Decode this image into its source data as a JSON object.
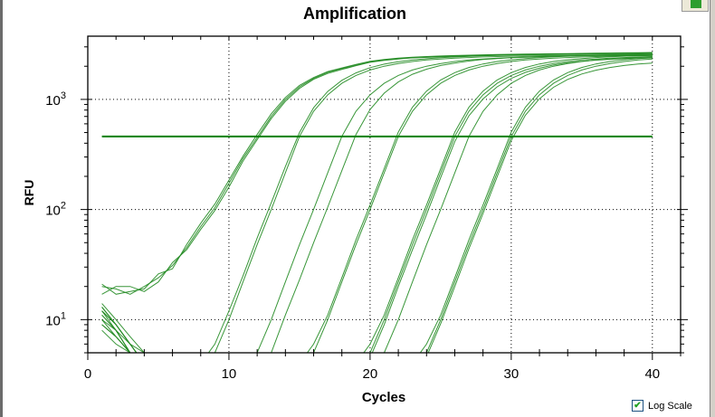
{
  "chart_data": {
    "type": "line",
    "title": "Amplification",
    "xlabel": "Cycles",
    "ylabel": "RFU",
    "xlim": [
      0,
      42
    ],
    "ylim": [
      5,
      3750
    ],
    "yscale": "log",
    "x_ticks": [
      0,
      10,
      20,
      30,
      40
    ],
    "y_ticks": [
      {
        "value": 10,
        "base": "10",
        "exp": "1"
      },
      {
        "value": 100,
        "base": "10",
        "exp": "2"
      },
      {
        "value": 1000,
        "base": "10",
        "exp": "3"
      }
    ],
    "grid": true,
    "threshold": 461,
    "threshold_range": [
      1,
      40
    ],
    "line_color": "#228B22",
    "threshold_color": "#008000",
    "x": [
      1,
      2,
      3,
      4,
      5,
      6,
      7,
      8,
      9,
      10,
      11,
      12,
      13,
      14,
      15,
      16,
      17,
      18,
      19,
      20,
      21,
      22,
      23,
      24,
      25,
      26,
      27,
      28,
      29,
      30,
      31,
      32,
      33,
      34,
      35,
      36,
      37,
      38,
      39,
      40
    ],
    "series": [
      {
        "values": [
          20,
          19,
          17,
          20,
          24,
          31,
          45,
          70,
          104,
          173,
          290,
          450,
          700,
          1000,
          1300,
          1550,
          1760,
          1900,
          2050,
          2200,
          2280,
          2350,
          2400,
          2430,
          2460,
          2480,
          2500,
          2520,
          2540,
          2550,
          2560,
          2570,
          2580,
          2590,
          2600,
          2610,
          2620,
          2630,
          2640,
          2650
        ]
      },
      {
        "values": [
          21,
          17,
          18,
          19,
          26,
          29,
          48,
          75,
          112,
          185,
          305,
          480,
          740,
          1040,
          1340,
          1580,
          1790,
          1930,
          2080,
          2220,
          2300,
          2370,
          2420,
          2450,
          2480,
          2500,
          2520,
          2540,
          2560,
          2570,
          2580,
          2590,
          2600,
          2610,
          2620,
          2630,
          2640,
          2650,
          2660,
          2670
        ]
      },
      {
        "values": [
          17,
          20,
          20,
          18,
          22,
          33,
          43,
          66,
          98,
          160,
          275,
          430,
          670,
          960,
          1260,
          1520,
          1720,
          1870,
          2020,
          2170,
          2260,
          2330,
          2380,
          2410,
          2440,
          2460,
          2480,
          2500,
          2520,
          2530,
          2540,
          2550,
          2560,
          2570,
          2580,
          2590,
          2600,
          2610,
          2620,
          2630
        ]
      },
      {
        "values": [
          12,
          9,
          6,
          4,
          4,
          4,
          4,
          4,
          5,
          10,
          22,
          48,
          100,
          215,
          461,
          780,
          1100,
          1400,
          1650,
          1850,
          2000,
          2120,
          2210,
          2280,
          2330,
          2370,
          2400,
          2430,
          2450,
          2470,
          2480,
          2490,
          2500,
          2510,
          2520,
          2530,
          2540,
          2550,
          2555,
          2560
        ]
      },
      {
        "values": [
          14,
          10,
          7,
          5,
          4,
          4,
          4,
          4,
          6,
          12,
          25,
          55,
          115,
          245,
          500,
          840,
          1180,
          1490,
          1740,
          1940,
          2090,
          2200,
          2280,
          2340,
          2390,
          2430,
          2460,
          2490,
          2510,
          2530,
          2550,
          2560,
          2570,
          2580,
          2590,
          2600,
          2610,
          2620,
          2630,
          2640
        ]
      },
      {
        "values": [
          10,
          8,
          5,
          4,
          4,
          4,
          4,
          4,
          4,
          4,
          4,
          5,
          10,
          22,
          48,
          100,
          215,
          461,
          780,
          1100,
          1400,
          1650,
          1850,
          2000,
          2120,
          2210,
          2280,
          2330,
          2370,
          2400,
          2430,
          2450,
          2470,
          2480,
          2490,
          2500,
          2510,
          2520,
          2530,
          2540
        ]
      },
      {
        "values": [
          13,
          9,
          6,
          5,
          4,
          4,
          4,
          4,
          4,
          4,
          4,
          4,
          5,
          11,
          23,
          50,
          105,
          225,
          480,
          810,
          1140,
          1440,
          1690,
          1880,
          2030,
          2140,
          2230,
          2300,
          2350,
          2390,
          2420,
          2440,
          2460,
          2480,
          2490,
          2500,
          2510,
          2520,
          2530,
          2540
        ]
      },
      {
        "values": [
          9,
          7,
          5,
          4,
          4,
          4,
          4,
          4,
          4,
          4,
          4,
          4,
          4,
          4,
          4,
          5,
          10,
          22,
          48,
          100,
          215,
          461,
          780,
          1100,
          1400,
          1650,
          1850,
          2000,
          2120,
          2210,
          2280,
          2330,
          2370,
          2400,
          2430,
          2450,
          2470,
          2480,
          2490,
          2500
        ]
      },
      {
        "values": [
          11,
          8,
          6,
          4,
          4,
          4,
          4,
          4,
          4,
          4,
          4,
          4,
          4,
          4,
          4,
          6,
          11,
          24,
          53,
          110,
          235,
          505,
          850,
          1190,
          1500,
          1750,
          1950,
          2100,
          2210,
          2290,
          2350,
          2400,
          2440,
          2470,
          2500,
          2520,
          2540,
          2560,
          2570,
          2580
        ]
      },
      {
        "values": [
          12,
          8,
          5,
          4,
          4,
          4,
          4,
          4,
          4,
          4,
          4,
          4,
          4,
          4,
          4,
          4,
          4,
          4,
          4,
          5,
          10,
          22,
          48,
          100,
          215,
          461,
          780,
          1100,
          1400,
          1650,
          1850,
          2000,
          2120,
          2210,
          2280,
          2330,
          2370,
          2400,
          2430,
          2450
        ]
      },
      {
        "values": [
          10,
          7,
          5,
          4,
          4,
          4,
          4,
          4,
          4,
          4,
          4,
          4,
          4,
          4,
          4,
          4,
          4,
          4,
          4,
          6,
          11,
          24,
          53,
          110,
          235,
          505,
          850,
          1190,
          1500,
          1750,
          1950,
          2100,
          2210,
          2290,
          2350,
          2400,
          2440,
          2470,
          2500,
          2520
        ]
      },
      {
        "values": [
          13,
          9,
          6,
          4,
          4,
          4,
          4,
          4,
          4,
          4,
          4,
          4,
          4,
          4,
          4,
          4,
          4,
          4,
          4,
          4.5,
          9,
          20,
          43,
          90,
          195,
          415,
          710,
          1010,
          1300,
          1550,
          1760,
          1920,
          2050,
          2150,
          2220,
          2270,
          2310,
          2340,
          2360,
          2380
        ]
      },
      {
        "values": [
          8,
          6,
          5,
          4,
          4,
          4,
          4,
          4,
          4,
          4,
          4,
          4,
          4,
          4,
          4,
          4,
          4,
          4,
          4,
          4,
          5,
          10,
          22,
          48,
          100,
          215,
          461,
          780,
          1100,
          1400,
          1650,
          1850,
          2000,
          2120,
          2210,
          2280,
          2330,
          2370,
          2400,
          2430
        ]
      },
      {
        "values": [
          11,
          8,
          5,
          4,
          4,
          4,
          4,
          4,
          4,
          4,
          4,
          4,
          4,
          4,
          4,
          4,
          4,
          4,
          4,
          4,
          4,
          4,
          4,
          5,
          10,
          22,
          48,
          100,
          215,
          461,
          780,
          1100,
          1400,
          1650,
          1850,
          2000,
          2120,
          2210,
          2280,
          2330
        ]
      },
      {
        "values": [
          9,
          7,
          5,
          4,
          4,
          4,
          4,
          4,
          4,
          4,
          4,
          4,
          4,
          4,
          4,
          4,
          4,
          4,
          4,
          4,
          4,
          4,
          4,
          6,
          11,
          24,
          53,
          110,
          235,
          505,
          850,
          1190,
          1500,
          1750,
          1950,
          2100,
          2210,
          2290,
          2350,
          2400
        ]
      },
      {
        "values": [
          12,
          9,
          6,
          4,
          4,
          4,
          4,
          4,
          4,
          4,
          4,
          4,
          4,
          4,
          4,
          4,
          4,
          4,
          4,
          4,
          4,
          4,
          4,
          4.6,
          9.2,
          20,
          44,
          92,
          198,
          424,
          718,
          1012,
          1288,
          1518,
          1700,
          1840,
          1950,
          2030,
          2100,
          2140
        ]
      }
    ]
  },
  "controls": {
    "log_scale_label": "Log Scale",
    "log_scale_checked": true,
    "check_glyph": "✔"
  }
}
